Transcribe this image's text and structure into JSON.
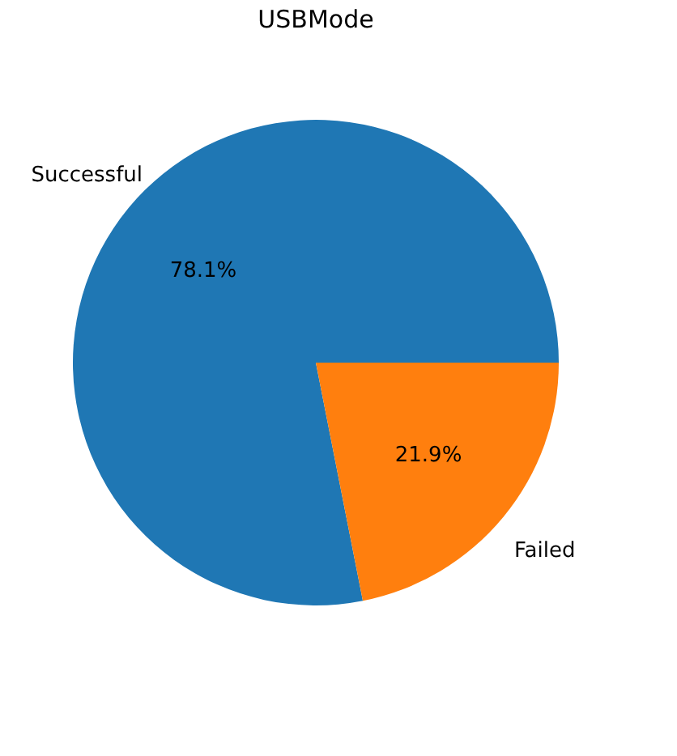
{
  "chart_data": {
    "type": "pie",
    "title": "USBMode",
    "categories": [
      "Successful",
      "Failed"
    ],
    "values": [
      78.1,
      21.9
    ],
    "colors": [
      "#1f77b4",
      "#ff7f0e"
    ],
    "value_labels": [
      "78.1%",
      "21.9%"
    ],
    "legend": false
  }
}
